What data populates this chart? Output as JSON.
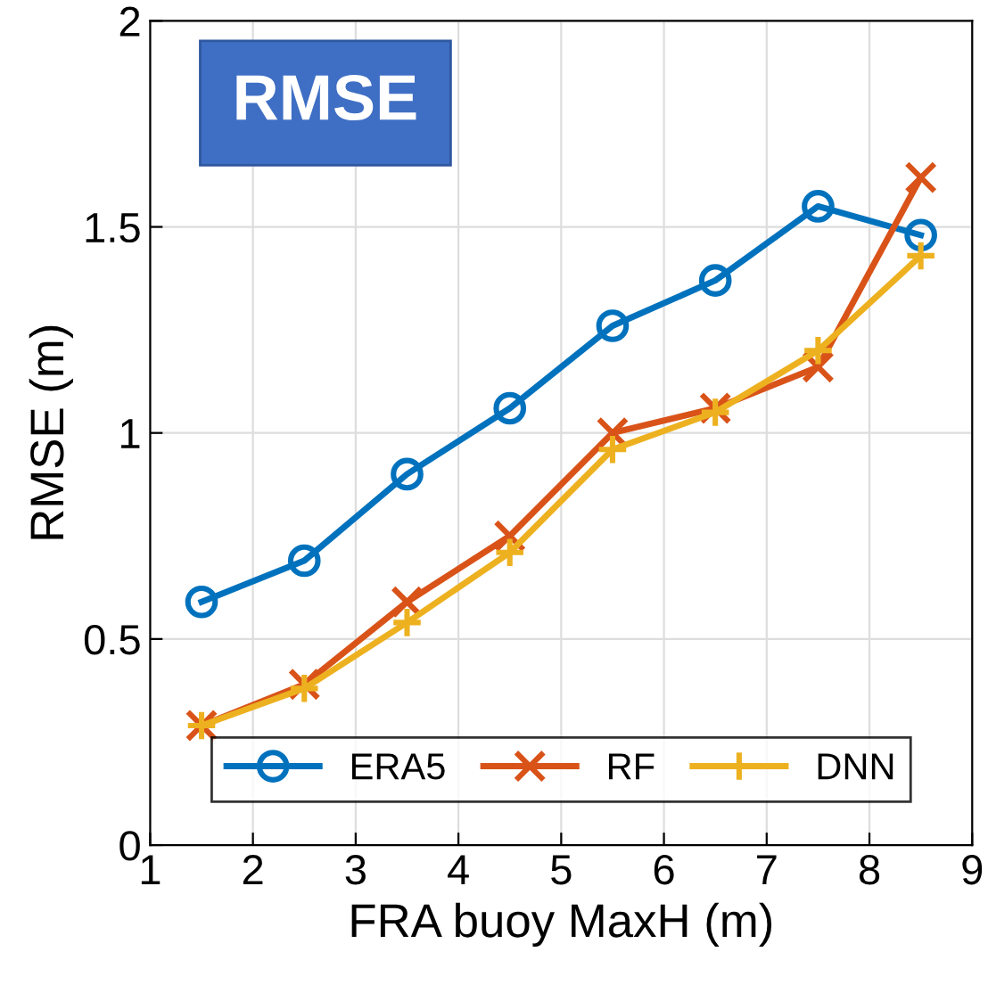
{
  "chart_data": {
    "type": "line",
    "xlabel": "FRA buoy MaxH (m)",
    "ylabel": "RMSE (m)",
    "annotations": [
      "RMSE"
    ],
    "x": [
      1.5,
      2.5,
      3.5,
      4.5,
      5.5,
      6.5,
      7.5,
      8.5
    ],
    "series": [
      {
        "name": "ERA5",
        "color": "#0072bd",
        "marker": "circle",
        "values": [
          0.59,
          0.69,
          0.9,
          1.06,
          1.26,
          1.37,
          1.55,
          1.48
        ]
      },
      {
        "name": "RF",
        "color": "#d95319",
        "marker": "cross",
        "values": [
          0.29,
          0.39,
          0.59,
          0.75,
          1.0,
          1.06,
          1.16,
          1.62
        ]
      },
      {
        "name": "DNN",
        "color": "#edb120",
        "marker": "plus",
        "values": [
          0.29,
          0.38,
          0.54,
          0.71,
          0.96,
          1.05,
          1.2,
          1.43
        ]
      }
    ],
    "xlim": [
      1,
      9
    ],
    "xticks": [
      1,
      2,
      3,
      4,
      5,
      6,
      7,
      8,
      9
    ],
    "ylim": [
      0,
      2
    ],
    "yticks": [
      0,
      0.5,
      1,
      1.5,
      2
    ],
    "grid": true,
    "legend": "bottom",
    "line_style": "solid"
  }
}
